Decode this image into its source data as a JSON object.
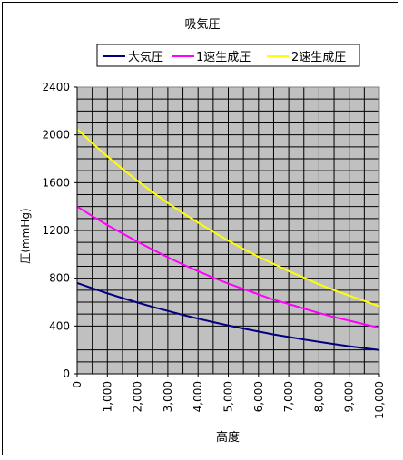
{
  "chart_data": {
    "type": "line",
    "title": "吸気圧",
    "xlabel": "高度",
    "ylabel": "圧(mmHg)",
    "xlim": [
      0,
      10000
    ],
    "ylim": [
      0,
      2400
    ],
    "grid": true,
    "legend_position": "top",
    "plot_background": "#c0c0c0",
    "x_tick_labels": [
      "0",
      "1,000",
      "2,000",
      "3,000",
      "4,000",
      "5,000",
      "6,000",
      "7,000",
      "8,000",
      "9,000",
      "10,000"
    ],
    "y_tick_labels": [
      "0",
      "400",
      "800",
      "1200",
      "1600",
      "2000",
      "2400"
    ],
    "x": [
      0,
      500,
      1000,
      1500,
      2000,
      2500,
      3000,
      3500,
      4000,
      4500,
      5000,
      5500,
      6000,
      6500,
      7000,
      7500,
      8000,
      8500,
      9000,
      9500,
      10000
    ],
    "series": [
      {
        "name": "大気圧",
        "color": "#000080",
        "values": [
          760,
          716,
          674,
          634,
          596,
          560,
          526,
          493,
          462,
          433,
          405,
          379,
          354,
          330,
          308,
          287,
          267,
          248,
          231,
          214,
          199
        ]
      },
      {
        "name": "1速生成圧",
        "color": "#ff00ff",
        "values": [
          1400,
          1320,
          1245,
          1175,
          1105,
          1040,
          975,
          915,
          860,
          805,
          755,
          710,
          665,
          620,
          585,
          545,
          510,
          475,
          445,
          415,
          385
        ]
      },
      {
        "name": "2速生成圧",
        "color": "#ffff00",
        "values": [
          2050,
          1930,
          1820,
          1715,
          1615,
          1520,
          1430,
          1345,
          1265,
          1190,
          1115,
          1045,
          980,
          920,
          860,
          805,
          750,
          700,
          655,
          610,
          565
        ]
      }
    ]
  }
}
